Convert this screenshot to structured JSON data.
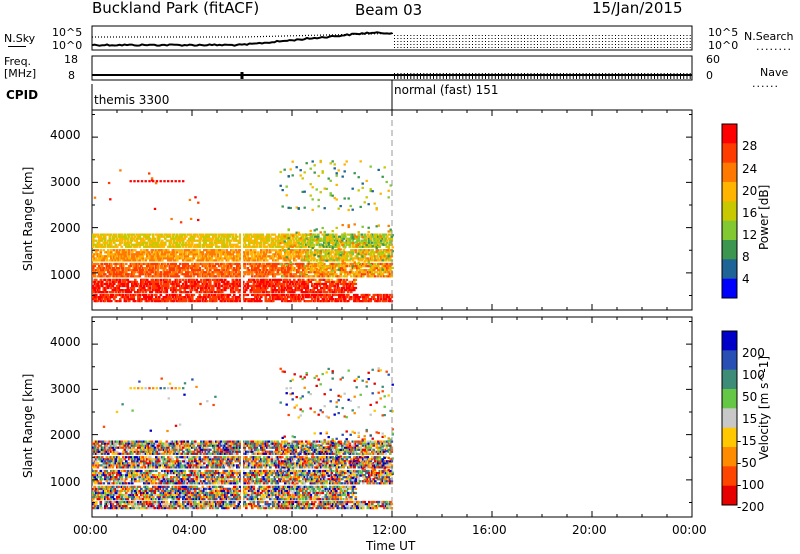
{
  "header": {
    "station": "Buckland Park (fitACF)",
    "beam": "Beam 03",
    "date": "15/Jan/2015"
  },
  "top_panels": {
    "nsky_label": "N.Sky",
    "nsearch_label": "N.Search",
    "freq_label_1": "Freq.",
    "freq_label_2": "[MHz]",
    "nave_label": "Nave",
    "cpid_label": "CPID",
    "noise_ticks_left": [
      "10^5",
      "10^0"
    ],
    "noise_ticks_right": [
      "10^5",
      "10^0"
    ],
    "freq_ticks": [
      "18",
      "8"
    ],
    "nave_ticks": [
      "60",
      "0"
    ],
    "cpid_modes": [
      {
        "label": "themis 3300",
        "start_hour": 0,
        "end_hour": 12
      },
      {
        "label": "normal (fast) 151",
        "start_hour": 12,
        "end_hour": 24
      }
    ]
  },
  "power_colorbar": {
    "label": "Power [dB]",
    "ticks": [
      "28",
      "24",
      "20",
      "16",
      "12",
      "8",
      "4"
    ],
    "colors": [
      "#ff0000",
      "#ff3c00",
      "#ff7800",
      "#ffb400",
      "#c8c800",
      "#82c832",
      "#3c9650",
      "#1e6496",
      "#0000ff"
    ]
  },
  "velocity_colorbar": {
    "label": "Velocity [m s^-1]",
    "ticks": [
      "200",
      "100",
      "50",
      "15",
      "-15",
      "-50",
      "-100",
      "-200"
    ],
    "colors": [
      "#0000c8",
      "#2850b4",
      "#3c8c78",
      "#64c846",
      "#c8c8c8",
      "#ffc800",
      "#ff8c00",
      "#ff4600",
      "#e60000"
    ]
  },
  "chart_data": [
    {
      "type": "heatmap",
      "panel": "power",
      "xlabel": "Time UT",
      "ylabel": "Slant Range [km]",
      "xticks": [
        "00:00",
        "04:00",
        "08:00",
        "12:00",
        "16:00",
        "20:00",
        "00:00"
      ],
      "yticks": [
        "1000",
        "2000",
        "3000",
        "4000"
      ],
      "xlim_hours": [
        0,
        24
      ],
      "ylim_km": [
        180,
        4600
      ],
      "mode_change_hour": 12,
      "echo_bands_km": [
        {
          "range": [
            400,
            560
          ],
          "start_hour": 0,
          "end_hour": 12,
          "color_index": 0
        },
        {
          "range": [
            600,
            900
          ],
          "start_hour": 0,
          "end_hour": 10.5,
          "color_index": 0
        },
        {
          "range": [
            950,
            1250
          ],
          "start_hour": 0,
          "end_hour": 12,
          "color_index": 1
        },
        {
          "range": [
            1300,
            1550
          ],
          "start_hour": 0,
          "end_hour": 12,
          "color_index": 2
        },
        {
          "range": [
            1600,
            1900
          ],
          "start_hour": 0,
          "end_hour": 12,
          "color_index": 3
        }
      ]
    },
    {
      "type": "heatmap",
      "panel": "velocity",
      "xlabel": "Time UT",
      "ylabel": "Slant Range [km]",
      "xticks": [
        "00:00",
        "04:00",
        "08:00",
        "12:00",
        "16:00",
        "20:00",
        "00:00"
      ],
      "yticks": [
        "1000",
        "2000",
        "3000",
        "4000"
      ],
      "xlim_hours": [
        0,
        24
      ],
      "ylim_km": [
        180,
        4600
      ],
      "mode_change_hour": 12
    }
  ]
}
